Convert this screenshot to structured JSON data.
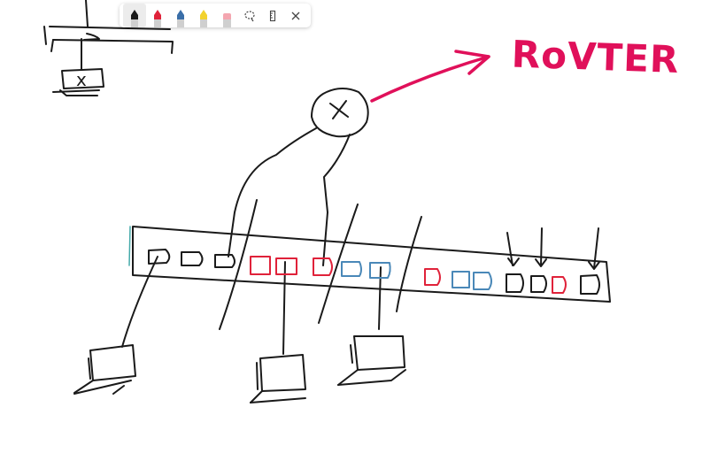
{
  "canvas": {
    "router_label": "RoVTER",
    "computer_glyph": "x",
    "router_glyph": "x"
  },
  "toolbar": {
    "tools": [
      {
        "name": "black-pen",
        "color": "#1a1a1a",
        "active": true
      },
      {
        "name": "red-pen",
        "color": "#e0223a",
        "active": false
      },
      {
        "name": "blue-pen",
        "color": "#3a6ea8",
        "active": false
      },
      {
        "name": "yellow-highlighter",
        "color": "#f2d22e",
        "active": false
      },
      {
        "name": "pink-eraser",
        "color": "#f4a6b0",
        "active": false
      }
    ],
    "actions": [
      {
        "name": "lasso-icon"
      },
      {
        "name": "ruler-icon"
      },
      {
        "name": "close-icon"
      }
    ]
  },
  "colors": {
    "ink_black": "#1a1a1a",
    "ink_red": "#e0223a",
    "ink_blue": "#4a88b8",
    "ink_pink": "#e0105a"
  }
}
